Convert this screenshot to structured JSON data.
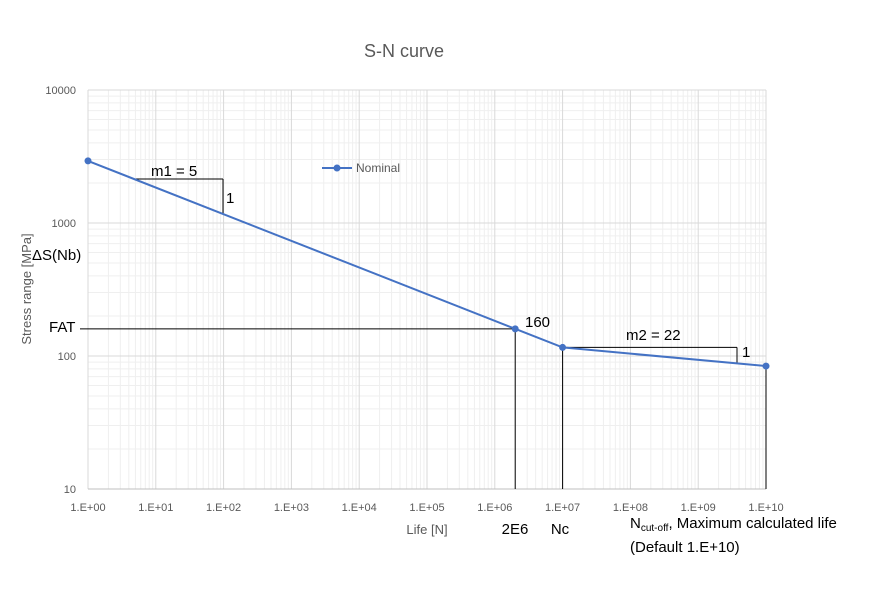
{
  "chart_data": {
    "type": "line",
    "title": "S-N curve",
    "xlabel": "Life [N]",
    "ylabel": "Stress range [MPa]",
    "x_scale": "log",
    "y_scale": "log",
    "xlim": [
      1,
      10000000000
    ],
    "ylim": [
      10,
      10000
    ],
    "x_tick_labels": [
      "1.E+00",
      "1.E+01",
      "1.E+02",
      "1.E+03",
      "1.E+04",
      "1.E+05",
      "1.E+06",
      "1.E+07",
      "1.E+08",
      "1.E+09",
      "1.E+10"
    ],
    "y_tick_labels": [
      "10",
      "100",
      "1000",
      "10000"
    ],
    "grid": true,
    "legend_position": "top-center",
    "series": [
      {
        "name": "Nominal",
        "color": "#4472C4",
        "x": [
          1,
          2000000,
          10000000,
          10000000000
        ],
        "y": [
          2930,
          160,
          116,
          84
        ]
      }
    ],
    "annotations": {
      "slope1": "m1 = 5",
      "slope1_rise": "1",
      "delta_s": "ΔS(Nb)",
      "fat": "FAT",
      "fat_value": "160",
      "slope2": "m2 = 22",
      "slope2_rise": "1",
      "n_2e6": "2E6",
      "nc": "Nc",
      "ncutoff_main": "N",
      "ncutoff_sub": "cut-off",
      "ncutoff_rest": ", Maximum calculated life",
      "default_text": "(Default 1.E+10)"
    }
  }
}
